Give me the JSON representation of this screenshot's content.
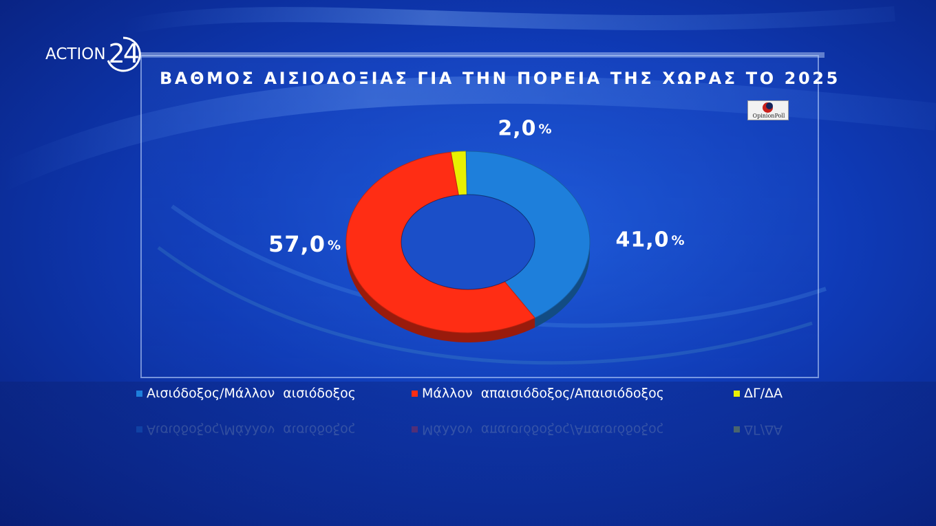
{
  "brand": {
    "name": "ACTION",
    "number": "24"
  },
  "poll_logo": {
    "text": "OpinionPoll"
  },
  "chart_data": {
    "type": "pie",
    "title": "ΒΑΘΜΟΣ ΑΙΣΙΟΔΟΞΙΑΣ ΓΙΑ ΤΗΝ ΠΟΡΕΙΑ ΤΗΣ ΧΩΡΑΣ ΤΟ 2025",
    "slices": [
      {
        "name": "Αισιόδοξος/Μάλλον  αισιόδοξος",
        "value": 41.0,
        "label": "41,0",
        "unit": "%",
        "color": "#1e7fdb"
      },
      {
        "name": "Μάλλον  απαισιόδοξος/Απαισιόδοξος",
        "value": 57.0,
        "label": "57,0",
        "unit": "%",
        "color": "#ff2d14"
      },
      {
        "name": "ΔΓ/ΔΑ",
        "value": 2.0,
        "label": "2,0",
        "unit": "%",
        "color": "#e8f000"
      }
    ],
    "donut": true,
    "legend_position": "bottom"
  }
}
